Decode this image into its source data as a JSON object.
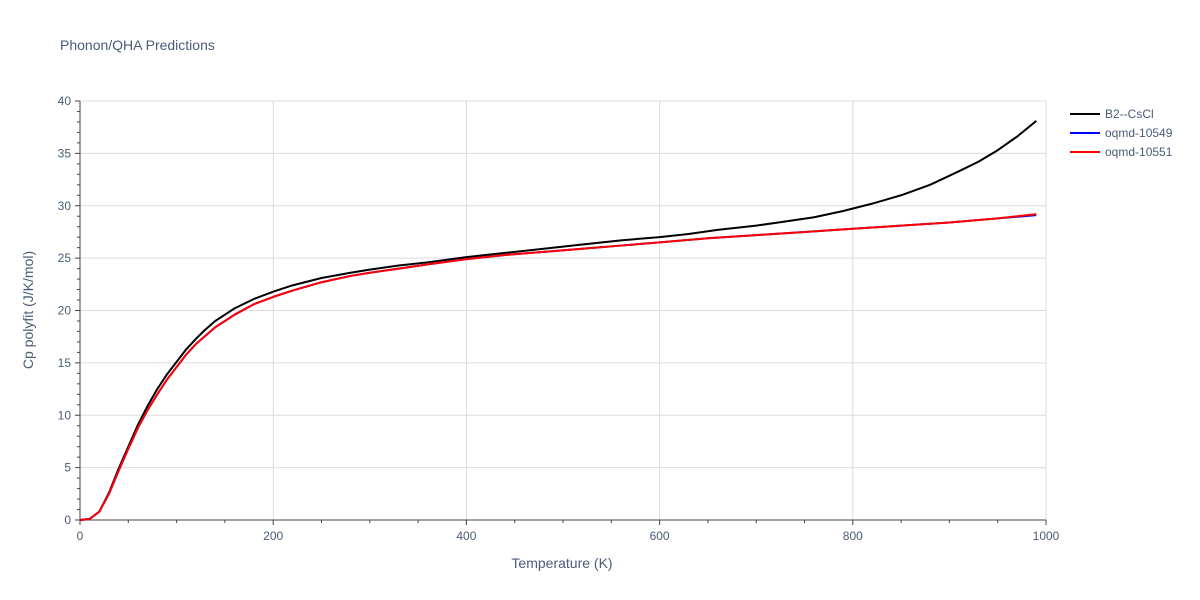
{
  "chart_data": {
    "type": "line",
    "title": "Phonon/QHA Predictions",
    "xlabel": "Temperature (K)",
    "ylabel": "Cp polyfit (J/K/mol)",
    "xlim": [
      0,
      1000
    ],
    "ylim": [
      0,
      40
    ],
    "x_ticks": [
      0,
      200,
      400,
      600,
      800,
      1000
    ],
    "y_ticks": [
      0,
      5,
      10,
      15,
      20,
      25,
      30,
      35,
      40
    ],
    "grid": true,
    "legend_position": "top-right",
    "series": [
      {
        "name": "B2--CsCl",
        "color": "#000000",
        "x": [
          0,
          10,
          20,
          30,
          40,
          50,
          60,
          70,
          80,
          90,
          100,
          110,
          120,
          130,
          140,
          150,
          160,
          180,
          200,
          220,
          250,
          280,
          300,
          330,
          360,
          400,
          440,
          480,
          520,
          560,
          600,
          630,
          660,
          700,
          730,
          760,
          790,
          820,
          850,
          880,
          910,
          930,
          950,
          970,
          990
        ],
        "y": [
          0,
          0.1,
          0.8,
          2.6,
          4.9,
          7.0,
          9.1,
          10.9,
          12.5,
          13.9,
          15.1,
          16.3,
          17.3,
          18.2,
          19.0,
          19.6,
          20.2,
          21.1,
          21.8,
          22.4,
          23.1,
          23.6,
          23.9,
          24.3,
          24.6,
          25.1,
          25.5,
          25.9,
          26.3,
          26.7,
          27.0,
          27.3,
          27.7,
          28.1,
          28.5,
          28.9,
          29.5,
          30.2,
          31.0,
          32.0,
          33.3,
          34.2,
          35.3,
          36.6,
          38.1
        ]
      },
      {
        "name": "oqmd-10549",
        "color": "#0000ff",
        "x": [
          0,
          10,
          20,
          30,
          40,
          50,
          60,
          70,
          80,
          90,
          100,
          110,
          120,
          130,
          140,
          150,
          160,
          180,
          200,
          220,
          250,
          280,
          300,
          330,
          360,
          400,
          440,
          480,
          520,
          560,
          600,
          650,
          700,
          750,
          800,
          850,
          900,
          950,
          990
        ],
        "y": [
          0,
          0.1,
          0.8,
          2.5,
          4.7,
          6.8,
          8.8,
          10.5,
          12.0,
          13.4,
          14.6,
          15.8,
          16.8,
          17.6,
          18.4,
          19.0,
          19.6,
          20.6,
          21.3,
          21.9,
          22.7,
          23.3,
          23.6,
          24.0,
          24.4,
          24.9,
          25.3,
          25.6,
          25.9,
          26.2,
          26.5,
          26.9,
          27.2,
          27.5,
          27.8,
          28.1,
          28.4,
          28.8,
          29.1
        ]
      },
      {
        "name": "oqmd-10551",
        "color": "#ff0000",
        "x": [
          0,
          10,
          20,
          30,
          40,
          50,
          60,
          70,
          80,
          90,
          100,
          110,
          120,
          130,
          140,
          150,
          160,
          180,
          200,
          220,
          250,
          280,
          300,
          330,
          360,
          400,
          440,
          480,
          520,
          560,
          600,
          650,
          700,
          750,
          800,
          850,
          900,
          950,
          990
        ],
        "y": [
          0,
          0.1,
          0.8,
          2.5,
          4.7,
          6.8,
          8.8,
          10.5,
          12.0,
          13.4,
          14.6,
          15.8,
          16.8,
          17.6,
          18.4,
          19.0,
          19.6,
          20.6,
          21.3,
          21.9,
          22.7,
          23.3,
          23.6,
          24.0,
          24.4,
          24.9,
          25.3,
          25.6,
          25.9,
          26.2,
          26.5,
          26.9,
          27.2,
          27.5,
          27.8,
          28.1,
          28.4,
          28.8,
          29.2
        ]
      }
    ]
  }
}
